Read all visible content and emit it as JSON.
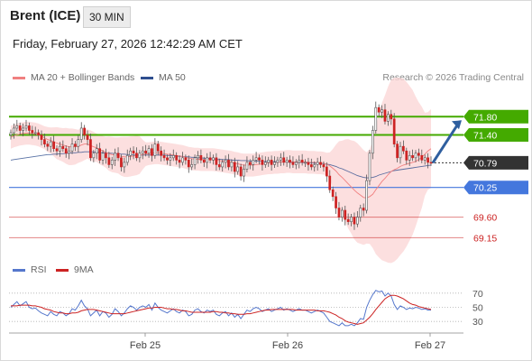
{
  "header": {
    "instrument": "Brent (ICE)",
    "timeframe": "30 MIN",
    "datetime": "Friday, February 27, 2026 12:42:29 AM CET"
  },
  "legend": {
    "ma20": {
      "label": "MA 20 + Bollinger Bands",
      "color": "#f08080"
    },
    "ma50": {
      "label": "MA 50",
      "color": "#2f4f8f"
    }
  },
  "credit": "Research © 2026 Trading Central",
  "colors": {
    "up": "#ffffff",
    "down": "#cc2222",
    "wick": "#555555",
    "band": "#fbd4d4",
    "resistance": "#44aa00",
    "support": "#4477dd",
    "lower": "#cc2222",
    "last": "#333333",
    "arrow": "#2f5f9f",
    "rsi": "#5577cc",
    "rsi_ma": "#cc2222"
  },
  "chart_data": [
    {
      "type": "line",
      "title": "Brent (ICE)",
      "price_range": [
        68.9,
        72.3
      ],
      "x_ticks": [
        "Feb 25",
        "Feb 26",
        "Feb 27"
      ],
      "levels": [
        {
          "value": 71.8,
          "label": "71.80",
          "kind": "resistance"
        },
        {
          "value": 71.4,
          "label": "71.40",
          "kind": "resistance"
        },
        {
          "value": 70.79,
          "label": "70.79",
          "kind": "last"
        },
        {
          "value": 70.25,
          "label": "70.25",
          "kind": "support"
        },
        {
          "value": 69.6,
          "label": "69.60",
          "kind": "lower"
        },
        {
          "value": 69.15,
          "label": "69.15",
          "kind": "lower"
        }
      ],
      "close": [
        71.45,
        71.55,
        71.6,
        71.5,
        71.55,
        71.6,
        71.5,
        71.45,
        71.45,
        71.4,
        71.3,
        71.2,
        71.15,
        71.25,
        71.1,
        71.05,
        71.15,
        71.1,
        71.0,
        71.05,
        71.2,
        71.15,
        71.3,
        71.55,
        71.4,
        71.3,
        70.9,
        71.0,
        71.1,
        70.85,
        71.0,
        70.9,
        70.75,
        70.85,
        71.0,
        70.9,
        70.7,
        70.8,
        70.95,
        71.05,
        71.0,
        70.9,
        71.0,
        71.05,
        71.0,
        71.1,
        70.95,
        71.2,
        71.05,
        70.95,
        70.9,
        70.85,
        70.9,
        70.95,
        70.85,
        70.8,
        70.9,
        70.85,
        70.7,
        70.75,
        70.9,
        70.95,
        70.85,
        70.8,
        70.9,
        70.85,
        70.9,
        70.75,
        70.7,
        70.8,
        70.85,
        70.7,
        70.8,
        70.6,
        70.7,
        70.5,
        70.65,
        70.8,
        70.75,
        70.85,
        70.9,
        70.85,
        70.75,
        70.8,
        70.85,
        70.75,
        70.8,
        70.85,
        70.9,
        70.8,
        70.85,
        70.8,
        70.75,
        70.8,
        70.85,
        70.8,
        70.8,
        70.75,
        70.7,
        70.75,
        70.8,
        70.75,
        70.7,
        70.5,
        70.2,
        70.05,
        69.8,
        69.6,
        69.75,
        69.55,
        69.5,
        69.6,
        69.45,
        69.6,
        69.8,
        69.75,
        70.4,
        71.0,
        71.5,
        72.0,
        71.9,
        71.95,
        71.7,
        71.85,
        71.75,
        71.2,
        70.9,
        71.15,
        71.05,
        70.85,
        70.95,
        70.9,
        71.0,
        70.95,
        70.85,
        70.9,
        70.8,
        70.79
      ],
      "ma20": [
        71.35,
        71.38,
        71.4,
        71.42,
        71.43,
        71.44,
        71.44,
        71.43,
        71.42,
        71.4,
        71.37,
        71.34,
        71.3,
        71.28,
        71.25,
        71.22,
        71.2,
        71.18,
        71.16,
        71.14,
        71.14,
        71.14,
        71.15,
        71.18,
        71.2,
        71.2,
        71.17,
        71.14,
        71.12,
        71.08,
        71.05,
        71.02,
        70.99,
        70.97,
        70.96,
        70.95,
        70.93,
        70.92,
        70.92,
        70.93,
        70.94,
        70.95,
        70.96,
        70.97,
        70.98,
        70.99,
        71.0,
        71.01,
        71.01,
        71.0,
        70.99,
        70.98,
        70.97,
        70.96,
        70.95,
        70.94,
        70.93,
        70.91,
        70.89,
        70.88,
        70.87,
        70.87,
        70.86,
        70.86,
        70.86,
        70.86,
        70.86,
        70.85,
        70.84,
        70.83,
        70.82,
        70.81,
        70.8,
        70.78,
        70.77,
        70.75,
        70.74,
        70.74,
        70.74,
        70.74,
        70.75,
        70.76,
        70.77,
        70.78,
        70.79,
        70.79,
        70.8,
        70.8,
        70.81,
        70.81,
        70.82,
        70.82,
        70.81,
        70.81,
        70.81,
        70.81,
        70.81,
        70.8,
        70.8,
        70.8,
        70.79,
        70.79,
        70.78,
        70.76,
        70.72,
        70.67,
        70.61,
        70.53,
        70.47,
        70.4,
        70.33,
        70.26,
        70.19,
        70.13,
        70.08,
        70.03,
        70.02,
        70.05,
        70.1,
        70.2,
        70.29,
        70.38,
        70.45,
        70.53,
        70.6,
        70.64,
        70.67,
        70.71,
        70.74,
        70.76,
        70.78,
        70.8,
        70.82,
        70.86,
        70.91,
        70.98,
        71.05,
        71.1
      ],
      "ma50": [
        70.85,
        70.86,
        70.87,
        70.88,
        70.89,
        70.9,
        70.91,
        70.92,
        70.93,
        70.94,
        70.95,
        70.96,
        70.97,
        70.97,
        70.98,
        70.98,
        70.99,
        70.99,
        71.0,
        71.0,
        71.01,
        71.01,
        71.02,
        71.02,
        71.03,
        71.03,
        71.03,
        71.03,
        71.02,
        71.02,
        71.01,
        71.01,
        71.0,
        71.0,
        70.99,
        70.99,
        70.98,
        70.98,
        70.97,
        70.97,
        70.96,
        70.96,
        70.96,
        70.96,
        70.96,
        70.96,
        70.96,
        70.96,
        70.96,
        70.96,
        70.96,
        70.95,
        70.95,
        70.94,
        70.94,
        70.93,
        70.93,
        70.92,
        70.92,
        70.91,
        70.91,
        70.9,
        70.9,
        70.89,
        70.89,
        70.88,
        70.88,
        70.87,
        70.87,
        70.86,
        70.86,
        70.86,
        70.85,
        70.85,
        70.85,
        70.84,
        70.84,
        70.84,
        70.83,
        70.83,
        70.83,
        70.82,
        70.82,
        70.82,
        70.82,
        70.82,
        70.82,
        70.81,
        70.81,
        70.81,
        70.81,
        70.8,
        70.8,
        70.8,
        70.8,
        70.8,
        70.79,
        70.79,
        70.79,
        70.78,
        70.78,
        70.78,
        70.77,
        70.76,
        70.75,
        70.73,
        70.71,
        70.68,
        70.66,
        70.63,
        70.6,
        70.57,
        70.54,
        70.51,
        70.49,
        70.47,
        70.46,
        70.46,
        70.47,
        70.49,
        70.52,
        70.54,
        70.56,
        70.58,
        70.6,
        70.62,
        70.63,
        70.64,
        70.65,
        70.66,
        70.67,
        70.68,
        70.69,
        70.7,
        70.71,
        70.72,
        70.73,
        70.74
      ]
    },
    {
      "type": "line",
      "title": "RSI",
      "ylim": [
        20,
        80
      ],
      "y_ticks": [
        70,
        50,
        30
      ],
      "series": [
        {
          "name": "RSI",
          "values": [
            50,
            54,
            58,
            52,
            55,
            58,
            50,
            48,
            49,
            45,
            42,
            40,
            38,
            44,
            40,
            38,
            44,
            42,
            38,
            41,
            48,
            46,
            52,
            60,
            52,
            48,
            38,
            42,
            46,
            38,
            44,
            42,
            36,
            40,
            48,
            44,
            38,
            42,
            48,
            52,
            50,
            46,
            50,
            52,
            50,
            54,
            46,
            56,
            50,
            46,
            44,
            42,
            45,
            48,
            44,
            42,
            46,
            44,
            38,
            40,
            46,
            48,
            44,
            42,
            46,
            44,
            46,
            40,
            38,
            42,
            44,
            38,
            42,
            36,
            40,
            34,
            40,
            46,
            44,
            48,
            50,
            48,
            44,
            46,
            48,
            44,
            46,
            48,
            50,
            46,
            48,
            46,
            44,
            46,
            48,
            46,
            46,
            44,
            42,
            44,
            46,
            44,
            42,
            36,
            30,
            28,
            26,
            24,
            28,
            24,
            24,
            26,
            24,
            28,
            34,
            33,
            50,
            60,
            68,
            74,
            72,
            73,
            66,
            70,
            66,
            54,
            47,
            52,
            50,
            47,
            49,
            48,
            50,
            49,
            47,
            48,
            46,
            46
          ]
        },
        {
          "name": "9MA",
          "values": [
            52,
            52,
            52,
            53,
            53,
            53,
            53,
            52,
            52,
            51,
            50,
            48,
            47,
            46,
            44,
            43,
            42,
            42,
            41,
            41,
            42,
            42,
            43,
            45,
            46,
            47,
            47,
            47,
            46,
            45,
            44,
            43,
            42,
            41,
            41,
            41,
            41,
            41,
            42,
            43,
            44,
            45,
            46,
            47,
            48,
            49,
            49,
            50,
            50,
            50,
            49,
            48,
            48,
            47,
            47,
            46,
            45,
            45,
            44,
            43,
            43,
            43,
            43,
            43,
            43,
            43,
            44,
            44,
            43,
            43,
            42,
            42,
            41,
            41,
            40,
            40,
            40,
            41,
            41,
            42,
            43,
            44,
            45,
            46,
            46,
            47,
            47,
            47,
            47,
            47,
            47,
            47,
            47,
            46,
            46,
            46,
            46,
            46,
            46,
            46,
            45,
            45,
            45,
            44,
            43,
            41,
            39,
            36,
            34,
            31,
            29,
            28,
            27,
            26,
            27,
            28,
            32,
            36,
            41,
            47,
            52,
            57,
            62,
            65,
            67,
            67,
            66,
            64,
            62,
            59,
            56,
            54,
            53,
            51,
            50,
            49,
            48,
            47
          ]
        }
      ]
    }
  ]
}
